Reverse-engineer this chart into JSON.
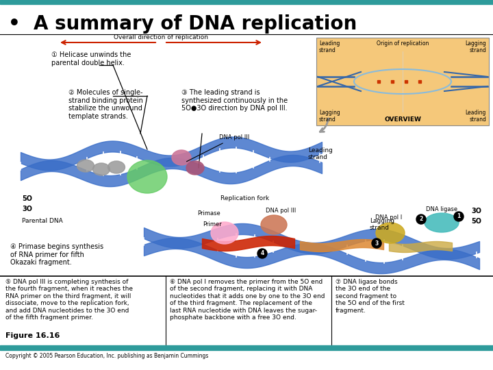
{
  "title": "A summary of DNA replication",
  "bullet": "•",
  "teal_color": "#2E9B9B",
  "background": "#ffffff",
  "overview_bg": "#F5C87A",
  "blue_dna": "#4477CC",
  "red_arrow": "#CC2200",
  "title_fontsize": 20,
  "body_fontsize": 7.0,
  "small_fontsize": 6.0,
  "copyright_text": "Copyright © 2005 Pearson Education, Inc. publishing as Benjamin Cummings",
  "figure_label": "Figure 16.16",
  "overall_dir_text": "Overall direction of replication",
  "label1": "① Helicase unwinds the\nparental double helix.",
  "label2": "② Molecules of single-\nstrand binding protein\nstabilize the unwound\ntemplate strands.",
  "label3": "③ The leading strand is\nsynthesized continuously in the\n5O●3O direction by DNA pol III.",
  "label4": "④ Primase begins synthesis\nof RNA primer for fifth\nOkazaki fragment.",
  "label5": "⑤ DNA pol III is completing synthesis of\nthe fourth fragment, when it reaches the\nRNA primer on the third fragment, it will\ndissociate, move to the replication fork,\nand add DNA nucleotides to the 3O end\nof the fifth fragment primer.",
  "label6": "⑥ DNA pol I removes the primer from the 5O end\nof the second fragment, replacing it with DNA\nnucleotides that it adds one by one to the 3O end\nof the third fragment. The replacement of the\nlast RNA nucleotide with DNA leaves the sugar-\nphosphate backbone with a free 3O end.",
  "label7": "⑦ DNA ligase bonds\nthe 3O end of the\nsecond fragment to\nthe 5O end of the first\nfragment.",
  "dna_pol_iii_label": "DNA pol III",
  "leading_strand_label": "Leading\nstrand",
  "lagging_strand_label": "Lagging\nstrand",
  "parental_dna_label": "Parental DNA",
  "replication_fork_label": "Replication fork",
  "primase_label": "Primase",
  "primer_label": "Primer",
  "dna_pol_i_label": "DNA pol I",
  "dna_ligase_label": "DNA ligase",
  "overview_leading_top": "Leading\nstrand",
  "overview_lagging_top": "Lagging\nstrand",
  "overview_origin": "Origin of replication",
  "overview_lagging_bot": "Lagging\nstrand",
  "overview_leading_bot": "Leading\nstrand",
  "overview_label": "OVERVIEW",
  "five_left": "5O",
  "three_left": "3O",
  "three_right": "3O",
  "five_right": "5O"
}
